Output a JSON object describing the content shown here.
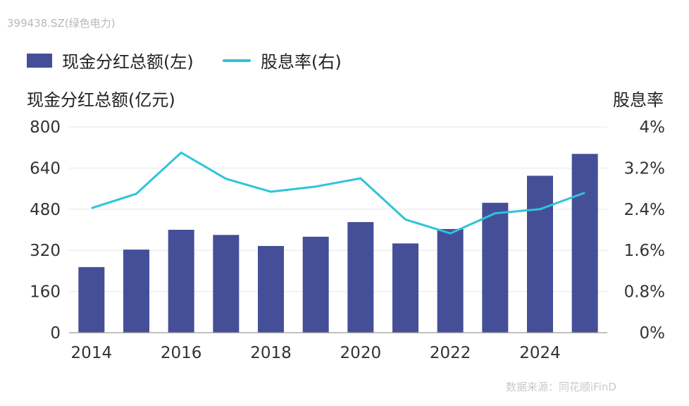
{
  "source_label": "399438.SZ(绿色电力)",
  "watermark": "数据来源：同花顺iFinD",
  "chart_data": {
    "type": "bar",
    "legend_position": "top-left",
    "ylabel_left": "现金分红总额(亿元)",
    "ylabel_right": "股息率",
    "x": [
      2014,
      2015,
      2016,
      2017,
      2018,
      2019,
      2020,
      2021,
      2022,
      2023,
      2024,
      2025
    ],
    "x_tick_labels": [
      "2014",
      "2016",
      "2018",
      "2020",
      "2022",
      "2024"
    ],
    "y_left_ticks": [
      "0",
      "160",
      "320",
      "480",
      "640",
      "800"
    ],
    "y_right_ticks": [
      "0%",
      "0.8%",
      "1.6%",
      "2.4%",
      "3.2%",
      "4%"
    ],
    "ylim_left": [
      0,
      800
    ],
    "ylim_right": [
      0,
      4
    ],
    "grid": true,
    "series": [
      {
        "name": "现金分红总额(左)",
        "type": "bar",
        "axis": "left",
        "color": "#454f97",
        "values": [
          255,
          323,
          400,
          380,
          337,
          373,
          430,
          347,
          403,
          505,
          610,
          695
        ]
      },
      {
        "name": "股息率(右)",
        "type": "line",
        "axis": "right",
        "color": "#2ec4da",
        "values": [
          2.42,
          2.7,
          3.5,
          2.99,
          2.74,
          2.84,
          3.0,
          2.2,
          1.93,
          2.32,
          2.4,
          2.72
        ]
      }
    ]
  }
}
